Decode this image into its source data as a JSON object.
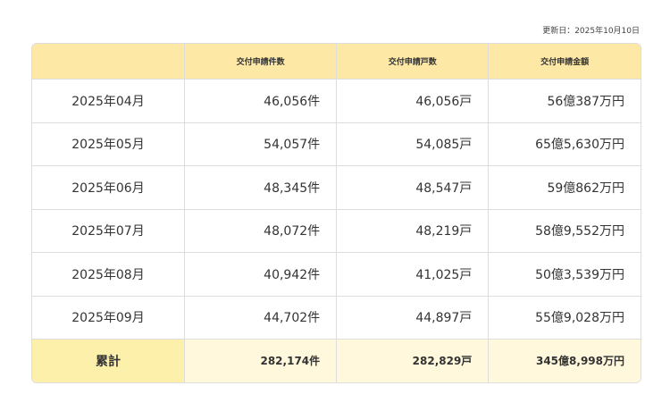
{
  "updated": "更新日：2025年10月10日",
  "table": {
    "headers": [
      "交付申請件数",
      "交付申請戸数",
      "交付申請金額"
    ],
    "rows": [
      [
        "2025年04月",
        "46,056件",
        "46,056戸",
        "56億387万円"
      ],
      [
        "2025年05月",
        "54,057件",
        "54,085戸",
        "65億5,630万円"
      ],
      [
        "2025年06月",
        "48,345件",
        "48,547戸",
        "59億862万円"
      ],
      [
        "2025年07月",
        "48,072件",
        "48,219戸",
        "58億9,552万円"
      ],
      [
        "2025年08月",
        "40,942件",
        "41,025戸",
        "50億3,539万円"
      ],
      [
        "2025年09月",
        "44,702件",
        "44,897戸",
        "55億9,028万円"
      ]
    ],
    "total": [
      "累計",
      "282,174件",
      "282,829戸",
      "345億8,998万円"
    ]
  }
}
